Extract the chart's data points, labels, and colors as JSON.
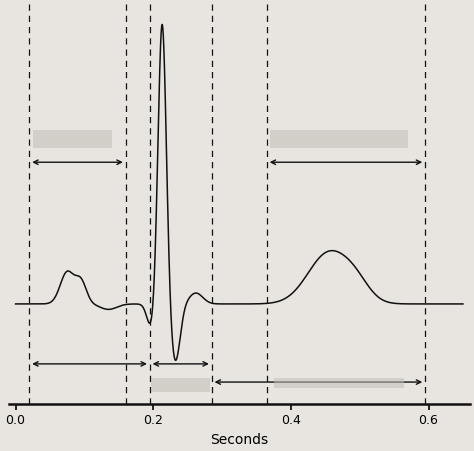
{
  "title": "",
  "xlabel": "Seconds",
  "xlim": [
    -0.01,
    0.66
  ],
  "ylim": [
    -0.55,
    1.65
  ],
  "xticks": [
    0,
    0.2,
    0.4,
    0.6
  ],
  "background_color": "#e8e5e0",
  "line_color": "#111111",
  "dashed_line_color": "#111111",
  "arrow_color": "#111111",
  "dashed_x_positions": [
    0.02,
    0.16,
    0.195,
    0.285,
    0.365,
    0.595
  ],
  "figsize": [
    4.74,
    4.51
  ],
  "dpi": 100
}
